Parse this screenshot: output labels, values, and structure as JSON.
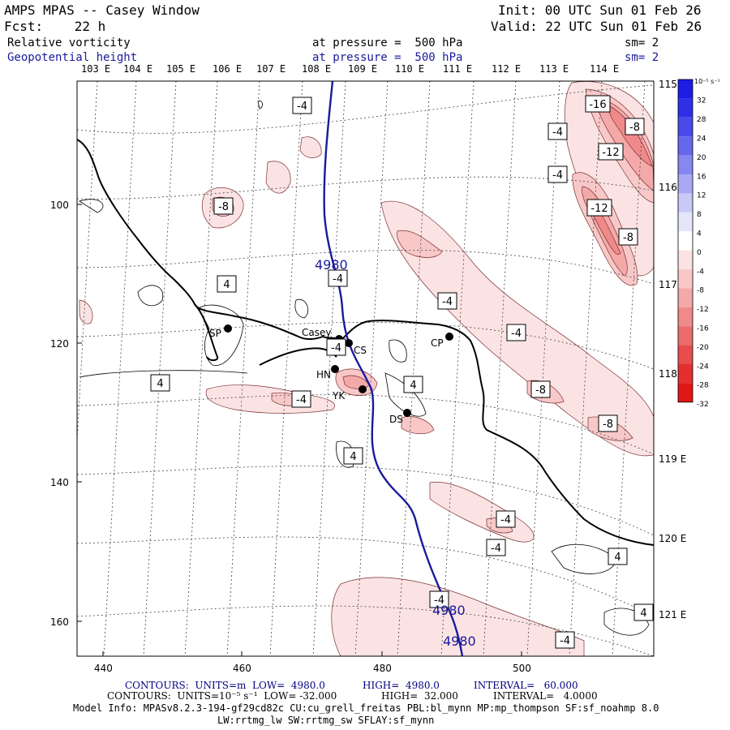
{
  "header": {
    "title": "AMPS MPAS -- Casey Window",
    "init": "Init: 00 UTC Sun 01 Feb 26",
    "fcst": "Fcst:    22 h",
    "valid": "Valid: 22 UTC Sun 01 Feb 26",
    "field1": "Relative vorticity",
    "field1_level": "at pressure =  500 hPa",
    "field1_sm": "sm= 2",
    "field2": "Geopotential height",
    "field2_level": "at pressure =  500 hPa",
    "field2_sm": "sm= 2"
  },
  "top_longitudes": [
    "103 E",
    "104 E",
    "105 E",
    "106 E",
    "107 E",
    "108 E",
    "109 E",
    "110 E",
    "111 E",
    "112 E",
    "113 E",
    "114 E"
  ],
  "right_longitudes": [
    "115 E",
    "116 E",
    "117 E",
    "118 E",
    "119 E",
    "120 E",
    "121 E"
  ],
  "x_ticks": [
    "440",
    "460",
    "480",
    "500"
  ],
  "y_ticks": [
    "100",
    "120",
    "140",
    "160"
  ],
  "stations": [
    {
      "name": "SP"
    },
    {
      "name": "Casey"
    },
    {
      "name": "CS"
    },
    {
      "name": "CP"
    },
    {
      "name": "HN"
    },
    {
      "name": "YK"
    },
    {
      "name": "DS"
    }
  ],
  "vorticity_labels": [
    "-4",
    "-16",
    "-8",
    "-4",
    "-12",
    "-4",
    "-8",
    "-12",
    "-8",
    "4",
    "-4",
    "-4",
    "-4",
    "4",
    "-4",
    "-8",
    "-8",
    "4",
    "-4",
    "4",
    "-4",
    "-4",
    "4",
    "-4",
    "4",
    "-4"
  ],
  "height_labels": [
    "4980",
    "4980",
    "4980"
  ],
  "colorbar": {
    "unit": "10⁻⁵ s⁻¹",
    "ticks": [
      "32",
      "28",
      "24",
      "20",
      "16",
      "12",
      "8",
      "4",
      "0",
      "-4",
      "-8",
      "-12",
      "-16",
      "-20",
      "-24",
      "-28",
      "-32"
    ],
    "colors": [
      "#1c1ce6",
      "#2f2fe8",
      "#4a4aeb",
      "#6767ee",
      "#8787f2",
      "#a8a8f5",
      "#c9c9f8",
      "#e6e6fb",
      "#ffffff",
      "#fbe3e3",
      "#f8c8c8",
      "#f4a9a9",
      "#f08a8a",
      "#ec6b6b",
      "#e84c4c",
      "#e42f2f",
      "#e01515"
    ]
  },
  "footer": {
    "line1_a": "CONTOURS:  UNITS=m  LOW=  4980.0",
    "line1_b": "HIGH=  4980.0",
    "line1_c": "INTERVAL=   60.000",
    "line2_a": "CONTOURS:  UNITS=10⁻⁵ s⁻¹  LOW= -32.000",
    "line2_b": "HIGH=  32.000",
    "line2_c": "INTERVAL=   4.0000",
    "model_info": "Model Info: MPASv8.2.3-194-gf29cd82c CU:cu_grell_freitas PBL:bl_mynn MP:mp_thompson SF:sf_noahmp 8.0",
    "model_info2": "LW:rrtmg_lw SW:rrtmg_sw SFLAY:sf_mynn"
  }
}
